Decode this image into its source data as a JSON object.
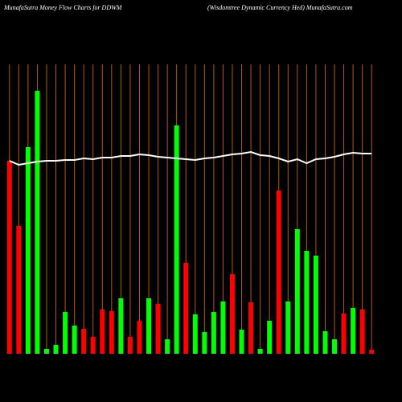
{
  "chart_data": {
    "type": "bar_line",
    "title": "MunafaSutra  Money Flow  Charts for DDWM",
    "subtitle": "(Wisdomtree   Dynamic Currency Hed) MunafaSutra.com",
    "categories": [
      null,
      null,
      null,
      null,
      null,
      null,
      null,
      null,
      null,
      null,
      null,
      null,
      null,
      null,
      null,
      null,
      null,
      null,
      null,
      null,
      null,
      null,
      null,
      null,
      null,
      null,
      null,
      null,
      null,
      null,
      null,
      null,
      null,
      null,
      null,
      null,
      null,
      null,
      null,
      null
    ],
    "series": [
      {
        "type": "bar",
        "values": [
          240,
          159,
          257,
          327,
          6,
          11,
          52,
          35,
          31,
          21,
          55,
          53,
          69,
          21,
          41,
          69,
          62,
          18,
          284,
          113,
          49,
          27,
          52,
          65,
          99,
          30,
          64,
          6,
          41,
          203,
          65,
          155,
          128,
          122,
          28,
          18,
          50,
          57,
          55,
          5
        ],
        "colors": [
          "#ff0000",
          "#ff0000",
          "#00ff00",
          "#00ff00",
          "#00ff00",
          "#00ff00",
          "#00ff00",
          "#00ff00",
          "#ff0000",
          "#ff0000",
          "#ff0000",
          "#ff0000",
          "#00ff00",
          "#ff0000",
          "#ff0000",
          "#00ff00",
          "#ff0000",
          "#00ff00",
          "#00ff00",
          "#ff0000",
          "#00ff00",
          "#00ff00",
          "#00ff00",
          "#00ff00",
          "#ff0000",
          "#00ff00",
          "#ff0000",
          "#00ff00",
          "#00ff00",
          "#ff0000",
          "#00ff00",
          "#00ff00",
          "#00ff00",
          "#00ff00",
          "#00ff00",
          "#00ff00",
          "#ff0000",
          "#00ff00",
          "#ff0000",
          "#ff0000"
        ]
      },
      {
        "type": "line",
        "color": "#ffffff",
        "values": [
          240,
          235,
          237,
          239,
          240,
          240,
          241,
          241,
          243,
          242,
          244,
          244,
          246,
          246,
          248,
          247,
          245,
          244,
          243,
          242,
          241,
          243,
          244,
          246,
          248,
          249,
          251,
          247,
          246,
          243,
          239,
          242,
          237,
          242,
          243,
          245,
          248,
          250,
          249,
          249
        ]
      }
    ],
    "ylim": [
      0,
      360
    ],
    "grid_color": "#b35a00"
  }
}
